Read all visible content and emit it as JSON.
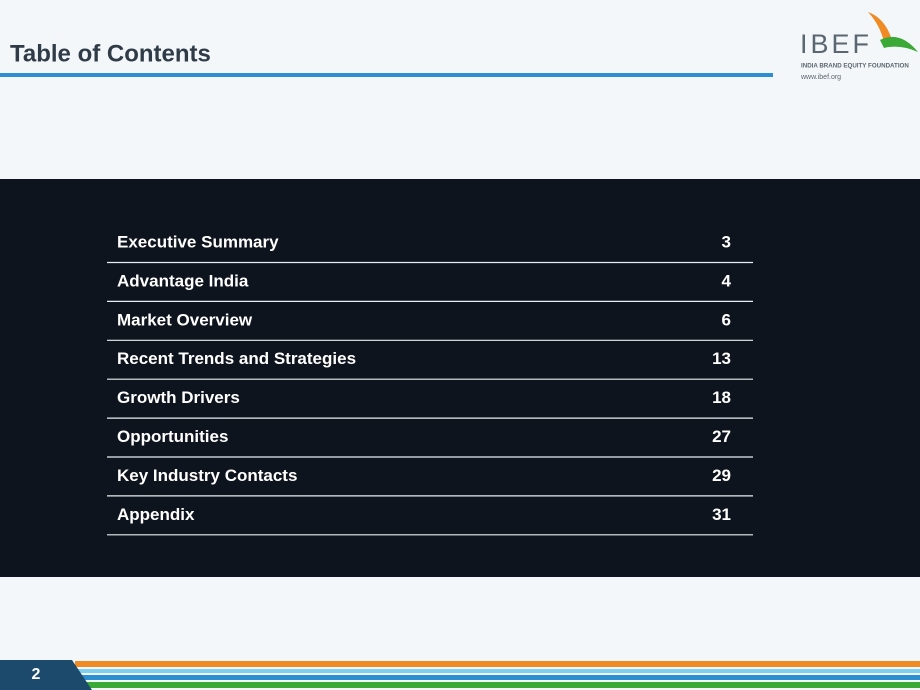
{
  "header": {
    "title": "Table of Contents"
  },
  "logo": {
    "name": "IBEF",
    "tagline": "INDIA BRAND EQUITY FOUNDATION",
    "url": "www.ibef.org"
  },
  "toc": [
    {
      "label": "Executive Summary",
      "page": 3
    },
    {
      "label": "Advantage India",
      "page": 4
    },
    {
      "label": "Market Overview",
      "page": 6
    },
    {
      "label": "Recent Trends and Strategies",
      "page": 13
    },
    {
      "label": "Growth Drivers",
      "page": 18
    },
    {
      "label": "Opportunities",
      "page": 27
    },
    {
      "label": "Key Industry Contacts",
      "page": 29
    },
    {
      "label": "Appendix",
      "page": 31
    }
  ],
  "footer": {
    "page_number": 2
  }
}
